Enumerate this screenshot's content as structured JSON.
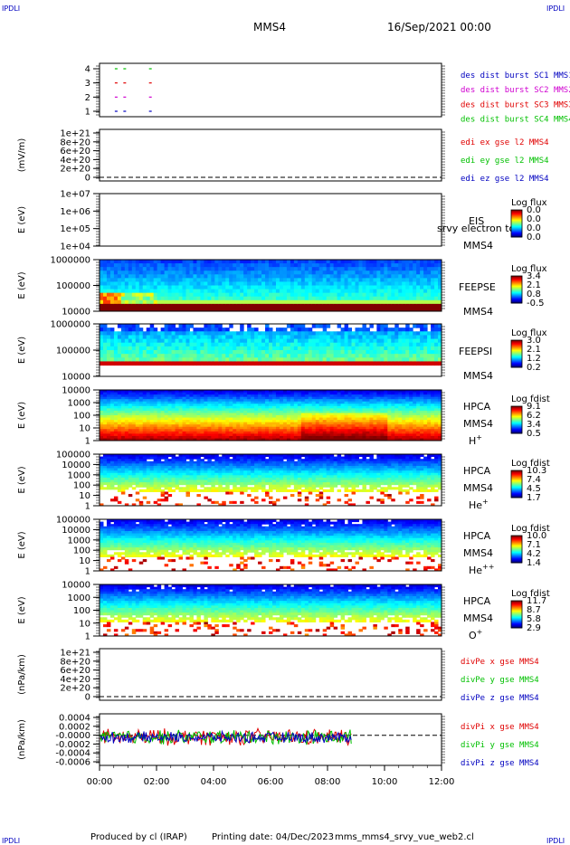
{
  "header": {
    "corner_tl": "IPDLI",
    "corner_tr": "IPDLI",
    "corner_bl": "IPDLI",
    "corner_br": "IPDLI",
    "mission": "MMS4",
    "date": "16/Sep/2021 00:00"
  },
  "footer": {
    "produced_by": "Produced by cl (IRAP)",
    "printing_date": "Printing date: 04/Dec/2023",
    "filename": "mms_mms4_srvy_vue_web2.cl"
  },
  "colors": {
    "black": "#000000",
    "red": "#e00000",
    "green": "#00c000",
    "blue": "#0000c0",
    "magenta": "#d000d0"
  },
  "chart_data": {
    "type": "multi-panel time series and spectrograms",
    "x_range": [
      "00:00",
      "12:00"
    ],
    "x_ticks": [
      "00:00",
      "02:00",
      "04:00",
      "06:00",
      "08:00",
      "10:00",
      "12:00"
    ],
    "panels": [
      {
        "id": "burst",
        "type": "scatter",
        "y_ticks": [
          "4",
          "3",
          "2",
          "1"
        ],
        "legend": [
          {
            "label": "des dist burst SC1 MMS1",
            "color": "#0000c0"
          },
          {
            "label": "des dist burst SC2 MMS2",
            "color": "#d000d0"
          },
          {
            "label": "des dist burst SC3 MMS3",
            "color": "#e00000"
          },
          {
            "label": "des dist burst SC4 MMS4",
            "color": "#00c000"
          }
        ],
        "series": [
          {
            "name": "des dist burst SC4 MMS4",
            "y": 4,
            "x_hours": [
              0.6,
              0.9,
              1.8
            ]
          },
          {
            "name": "des dist burst SC3 MMS3",
            "y": 3,
            "x_hours": [
              0.6,
              0.9,
              1.8
            ]
          },
          {
            "name": "des dist burst SC2 MMS2",
            "y": 2,
            "x_hours": [
              0.6,
              0.9,
              1.8
            ]
          },
          {
            "name": "des dist burst SC1 MMS1",
            "y": 1,
            "x_hours": [
              0.6,
              0.9,
              1.8
            ]
          }
        ]
      },
      {
        "id": "edi",
        "type": "line",
        "ylabel": "(mV/m)",
        "y_ticks": [
          "1e+21",
          "8e+20",
          "6e+20",
          "4e+20",
          "2e+20",
          "0"
        ],
        "legend": [
          {
            "label": "edi ex gse l2 MMS4",
            "color": "#e00000"
          },
          {
            "label": "edi ey gse l2 MMS4",
            "color": "#00c000"
          },
          {
            "label": "edi ez gse l2 MMS4",
            "color": "#0000c0"
          }
        ],
        "zero_line": true
      },
      {
        "id": "eis",
        "type": "heatmap",
        "ylabel": "E (eV)",
        "y_ticks": [
          "1e+07",
          "1e+06",
          "1e+05",
          "1e+04"
        ],
        "label1": "EIS",
        "label2": "MMS4",
        "overlay": "srvy electron to",
        "colorbar": {
          "title": "Log flux",
          "ticks": [
            "0.0",
            "0.0",
            "0.0",
            "0.0"
          ]
        }
      },
      {
        "id": "feepse",
        "type": "heatmap",
        "ylabel": "E (eV)",
        "y_ticks": [
          "1000000",
          "100000",
          "10000"
        ],
        "label1": "FEEPSE",
        "label2": "MMS4",
        "colorbar": {
          "title": "Log flux",
          "ticks": [
            "3.4",
            "2.1",
            "0.8",
            "-0.5"
          ]
        }
      },
      {
        "id": "feepsi",
        "type": "heatmap",
        "ylabel": "E (eV)",
        "y_ticks": [
          "1000000",
          "100000",
          "10000"
        ],
        "label1": "FEEPSI",
        "label2": "MMS4",
        "colorbar": {
          "title": "Log flux",
          "ticks": [
            "3.0",
            "2.1",
            "1.2",
            "0.2"
          ]
        }
      },
      {
        "id": "hpca_h",
        "type": "heatmap",
        "ylabel": "E (eV)",
        "y_ticks": [
          "10000",
          "1000",
          "100",
          "10",
          "1"
        ],
        "label1": "HPCA",
        "label2": "MMS4",
        "species": "H",
        "charge": "+",
        "colorbar": {
          "title": "Log fdist",
          "ticks": [
            "9.1",
            "6.2",
            "3.4",
            "0.5"
          ]
        }
      },
      {
        "id": "hpca_he",
        "type": "heatmap",
        "ylabel": "E (eV)",
        "y_ticks": [
          "100000",
          "10000",
          "1000",
          "100",
          "10",
          "1"
        ],
        "label1": "HPCA",
        "label2": "MMS4",
        "species": "He",
        "charge": "+",
        "colorbar": {
          "title": "Log fdist",
          "ticks": [
            "10.3",
            "7.4",
            "4.5",
            "1.7"
          ]
        }
      },
      {
        "id": "hpca_hepp",
        "type": "heatmap",
        "ylabel": "E (eV)",
        "y_ticks": [
          "100000",
          "10000",
          "1000",
          "100",
          "10",
          "1"
        ],
        "label1": "HPCA",
        "label2": "MMS4",
        "species": "He",
        "charge": "++",
        "colorbar": {
          "title": "Log fdist",
          "ticks": [
            "10.0",
            "7.1",
            "4.2",
            "1.4"
          ]
        }
      },
      {
        "id": "hpca_o",
        "type": "heatmap",
        "ylabel": "E (eV)",
        "y_ticks": [
          "10000",
          "1000",
          "100",
          "10",
          "1"
        ],
        "label1": "HPCA",
        "label2": "MMS4",
        "species": "O",
        "charge": "+",
        "colorbar": {
          "title": "Log fdist",
          "ticks": [
            "11.7",
            "8.7",
            "5.8",
            "2.9"
          ]
        }
      },
      {
        "id": "divpe",
        "type": "line",
        "ylabel": "(nPa/km)",
        "y_ticks": [
          "1e+21",
          "8e+20",
          "6e+20",
          "4e+20",
          "2e+20",
          "0"
        ],
        "legend": [
          {
            "label": "divPe x gse MMS4",
            "color": "#e00000"
          },
          {
            "label": "divPe y gse MMS4",
            "color": "#00c000"
          },
          {
            "label": "divPe z gse MMS4",
            "color": "#0000c0"
          }
        ],
        "zero_line": true
      },
      {
        "id": "divpi",
        "type": "line",
        "ylabel": "(nPa/km)",
        "y_ticks": [
          "0.0004",
          "0.0002",
          "-0.0000",
          "-0.0002",
          "-0.0004",
          "-0.0006"
        ],
        "ylim": [
          -0.0007,
          0.0005
        ],
        "data_end_hour": 8.85,
        "legend": [
          {
            "label": "divPi x gse MMS4",
            "color": "#e00000"
          },
          {
            "label": "divPi y gse MMS4",
            "color": "#00c000"
          },
          {
            "label": "divPi z gse MMS4",
            "color": "#0000c0"
          }
        ],
        "series": [
          {
            "name": "divPi x gse MMS4",
            "mean": -4e-05,
            "amplitude": 0.00018
          },
          {
            "name": "divPi y gse MMS4",
            "mean": -4e-05,
            "amplitude": 0.00016
          },
          {
            "name": "divPi z gse MMS4",
            "mean": -5e-05,
            "amplitude": 0.00012
          }
        ],
        "zero_line": true
      }
    ]
  }
}
